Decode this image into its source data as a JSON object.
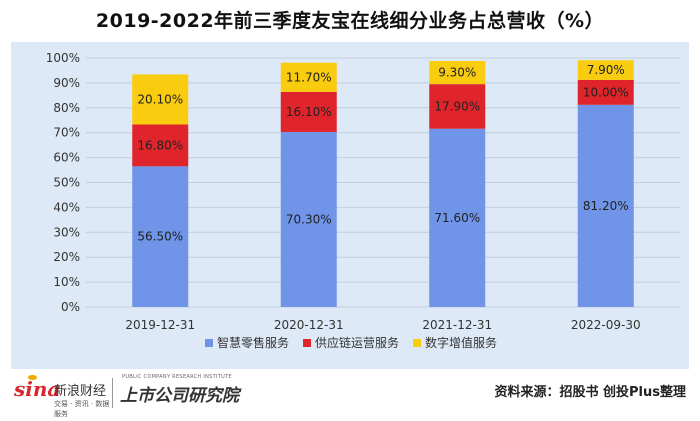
{
  "chart_data": {
    "type": "bar",
    "stacked": true,
    "title": "2019-2022年前三季度友宝在线细分业务占总营收（%）",
    "categories": [
      "2019-12-31",
      "2020-12-31",
      "2021-12-31",
      "2022-09-30"
    ],
    "series": [
      {
        "name": "智慧零售服务",
        "color": "#6f94e8",
        "values": [
          56.5,
          70.3,
          71.6,
          81.2
        ],
        "labels": [
          "56.50%",
          "70.30%",
          "71.60%",
          "81.20%"
        ]
      },
      {
        "name": "供应链运营服务",
        "color": "#e0242b",
        "values": [
          16.8,
          16.1,
          17.9,
          10.0
        ],
        "labels": [
          "16.80%",
          "16.10%",
          "17.90%",
          "10.00%"
        ]
      },
      {
        "name": "数字增值服务",
        "color": "#f9cc0f",
        "values": [
          20.1,
          11.7,
          9.3,
          7.9
        ],
        "labels": [
          "20.10%",
          "11.70%",
          "9.30%",
          "7.90%"
        ]
      }
    ],
    "ylim": [
      0,
      100
    ],
    "yticks": [
      "0%",
      "10%",
      "20%",
      "30%",
      "40%",
      "50%",
      "60%",
      "70%",
      "80%",
      "90%",
      "100%"
    ],
    "xlabel": "",
    "ylabel": "",
    "grid": true,
    "legend_position": "bottom"
  },
  "footer": {
    "sina_wordmark": "sina",
    "sina_name": "新浪财经",
    "sina_tagline": "交易 · 资讯 · 数据 · 服务",
    "research_tagline": "PUBLIC COMPANY RESEARCH INSTITUTE",
    "research_name": "上市公司研究院",
    "source_note": "资料来源：招股书 创投Plus整理"
  }
}
